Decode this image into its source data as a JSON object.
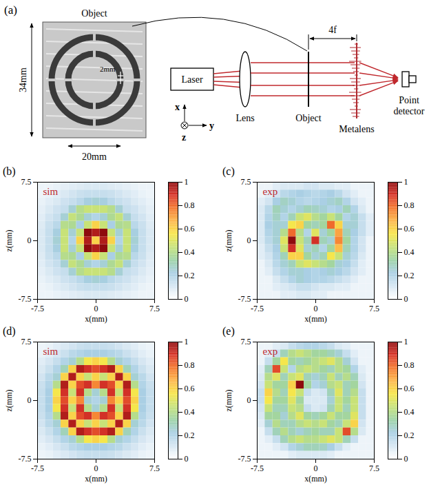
{
  "diagram": {
    "panel_label": "(a)",
    "object_photo": {
      "title": "Object",
      "height_label": "34mm",
      "width_label": "20mm",
      "gap_label": "2mm"
    },
    "components": [
      "Laser",
      "Lens",
      "Object",
      "Metalens",
      "Point detector"
    ],
    "distance_label": "4f",
    "axes": [
      "x",
      "z",
      "y"
    ]
  },
  "chart_data": [
    {
      "type": "heatmap",
      "panel_label": "(b)",
      "annotation": "sim",
      "xlabel": "x(mm)",
      "ylabel": "z(mm)",
      "xlim": [
        -7.5,
        7.5
      ],
      "ylim": [
        -7.5,
        7.5
      ],
      "xticks": [
        -7.5,
        0,
        7.5
      ],
      "yticks": [
        -7.5,
        0,
        7.5
      ],
      "x": [
        -7,
        -6,
        -5,
        -4,
        -3,
        -2,
        -1,
        0,
        1,
        2,
        3,
        4,
        5,
        6,
        7
      ],
      "z": [
        7,
        6,
        5,
        4,
        3,
        2,
        1,
        0,
        -1,
        -2,
        -3,
        -4,
        -5,
        -6,
        -7
      ],
      "cells": [
        [
          0.05,
          0.05,
          0.06,
          0.07,
          0.08,
          0.09,
          0.1,
          0.1,
          0.1,
          0.09,
          0.08,
          0.07,
          0.06,
          0.05,
          0.05
        ],
        [
          0.05,
          0.06,
          0.08,
          0.1,
          0.12,
          0.14,
          0.15,
          0.15,
          0.15,
          0.14,
          0.12,
          0.1,
          0.08,
          0.06,
          0.05
        ],
        [
          0.06,
          0.08,
          0.1,
          0.13,
          0.15,
          0.18,
          0.23,
          0.25,
          0.23,
          0.18,
          0.15,
          0.13,
          0.1,
          0.08,
          0.06
        ],
        [
          0.07,
          0.1,
          0.13,
          0.15,
          0.25,
          0.4,
          0.45,
          0.45,
          0.45,
          0.4,
          0.25,
          0.15,
          0.13,
          0.1,
          0.07
        ],
        [
          0.08,
          0.12,
          0.15,
          0.25,
          0.44,
          0.38,
          0.25,
          0.2,
          0.25,
          0.38,
          0.44,
          0.25,
          0.15,
          0.12,
          0.08
        ],
        [
          0.09,
          0.14,
          0.18,
          0.4,
          0.38,
          0.22,
          0.45,
          0.6,
          0.45,
          0.22,
          0.38,
          0.4,
          0.18,
          0.14,
          0.09
        ],
        [
          0.1,
          0.15,
          0.23,
          0.45,
          0.25,
          0.45,
          1.0,
          0.95,
          1.0,
          0.45,
          0.25,
          0.45,
          0.23,
          0.15,
          0.1
        ],
        [
          0.1,
          0.15,
          0.25,
          0.45,
          0.2,
          0.6,
          0.95,
          0.6,
          0.95,
          0.6,
          0.2,
          0.45,
          0.25,
          0.15,
          0.1
        ],
        [
          0.1,
          0.15,
          0.23,
          0.45,
          0.25,
          0.45,
          1.0,
          0.95,
          1.0,
          0.45,
          0.25,
          0.45,
          0.23,
          0.15,
          0.1
        ],
        [
          0.09,
          0.14,
          0.18,
          0.4,
          0.38,
          0.22,
          0.45,
          0.6,
          0.45,
          0.22,
          0.38,
          0.4,
          0.18,
          0.14,
          0.09
        ],
        [
          0.08,
          0.12,
          0.15,
          0.25,
          0.44,
          0.38,
          0.25,
          0.2,
          0.25,
          0.38,
          0.44,
          0.25,
          0.15,
          0.12,
          0.08
        ],
        [
          0.07,
          0.1,
          0.13,
          0.15,
          0.25,
          0.4,
          0.45,
          0.45,
          0.45,
          0.4,
          0.25,
          0.15,
          0.13,
          0.1,
          0.07
        ],
        [
          0.06,
          0.08,
          0.1,
          0.13,
          0.15,
          0.18,
          0.23,
          0.25,
          0.23,
          0.18,
          0.15,
          0.13,
          0.1,
          0.08,
          0.06
        ],
        [
          0.05,
          0.06,
          0.08,
          0.1,
          0.12,
          0.14,
          0.15,
          0.15,
          0.15,
          0.14,
          0.12,
          0.1,
          0.08,
          0.06,
          0.05
        ],
        [
          0.05,
          0.05,
          0.06,
          0.07,
          0.08,
          0.09,
          0.1,
          0.1,
          0.1,
          0.09,
          0.08,
          0.07,
          0.06,
          0.05,
          0.05
        ]
      ],
      "colorbar": {
        "range": [
          0,
          1
        ],
        "ticks": [
          0,
          0.2,
          0.4,
          0.6,
          0.8,
          1
        ]
      }
    },
    {
      "type": "heatmap",
      "panel_label": "(c)",
      "annotation": "exp",
      "xlabel": "x(mm)",
      "ylabel": "z(mm)",
      "xlim": [
        -7.5,
        7.5
      ],
      "ylim": [
        -7.5,
        7.5
      ],
      "xticks": [
        -7.5,
        0,
        7.5
      ],
      "yticks": [
        -7.5,
        0,
        7.5
      ],
      "x": [
        -7,
        -6,
        -5,
        -4,
        -3,
        -2,
        -1,
        0,
        1,
        2,
        3,
        4,
        5,
        6,
        7
      ],
      "z": [
        7,
        6,
        5,
        4,
        3,
        2,
        1,
        0,
        -1,
        -2,
        -3,
        -4,
        -5,
        -6,
        -7
      ],
      "cells": [
        [
          0.05,
          0.05,
          0.08,
          0.1,
          0.1,
          0.1,
          0.12,
          0.12,
          0.1,
          0.1,
          0.08,
          0.08,
          0.05,
          0.05,
          0.05
        ],
        [
          0.05,
          0.08,
          0.12,
          0.18,
          0.2,
          0.22,
          0.2,
          0.18,
          0.2,
          0.22,
          0.18,
          0.12,
          0.08,
          0.05,
          0.05
        ],
        [
          0.08,
          0.12,
          0.22,
          0.28,
          0.25,
          0.2,
          0.18,
          0.2,
          0.22,
          0.25,
          0.28,
          0.2,
          0.12,
          0.08,
          0.05
        ],
        [
          0.1,
          0.18,
          0.3,
          0.25,
          0.2,
          0.25,
          0.3,
          0.28,
          0.25,
          0.2,
          0.22,
          0.3,
          0.2,
          0.1,
          0.05
        ],
        [
          0.1,
          0.2,
          0.28,
          0.2,
          0.3,
          0.45,
          0.5,
          0.4,
          0.35,
          0.45,
          0.35,
          0.2,
          0.25,
          0.15,
          0.08
        ],
        [
          0.1,
          0.22,
          0.25,
          0.25,
          0.55,
          0.6,
          0.35,
          0.3,
          0.35,
          0.8,
          0.6,
          0.25,
          0.25,
          0.15,
          0.08
        ],
        [
          0.1,
          0.2,
          0.25,
          0.4,
          0.8,
          0.4,
          0.2,
          0.5,
          0.25,
          0.35,
          0.7,
          0.3,
          0.22,
          0.15,
          0.08
        ],
        [
          0.1,
          0.18,
          0.25,
          0.5,
          1.0,
          0.45,
          0.3,
          0.9,
          0.3,
          0.25,
          0.75,
          0.35,
          0.2,
          0.12,
          0.05
        ],
        [
          0.08,
          0.15,
          0.22,
          0.45,
          0.9,
          0.5,
          0.25,
          0.3,
          0.2,
          0.35,
          0.65,
          0.3,
          0.2,
          0.12,
          0.05
        ],
        [
          0.08,
          0.12,
          0.2,
          0.3,
          0.6,
          0.6,
          0.35,
          0.25,
          0.3,
          0.55,
          0.45,
          0.25,
          0.18,
          0.1,
          0.05
        ],
        [
          0.05,
          0.1,
          0.18,
          0.25,
          0.3,
          0.45,
          0.5,
          0.45,
          0.4,
          0.35,
          0.25,
          0.22,
          0.15,
          0.08,
          0.05
        ],
        [
          0.05,
          0.08,
          0.15,
          0.2,
          0.25,
          0.25,
          0.22,
          0.2,
          0.22,
          0.25,
          0.22,
          0.18,
          0.12,
          0.08,
          0.05
        ],
        [
          0.05,
          0.05,
          0.1,
          0.15,
          0.2,
          0.25,
          0.22,
          0.2,
          0.2,
          0.18,
          0.15,
          0.12,
          0.08,
          0.05,
          0.05
        ],
        [
          0.05,
          0.05,
          0.08,
          0.1,
          0.12,
          0.15,
          0.15,
          0.12,
          0.1,
          0.1,
          0.08,
          0.08,
          0.05,
          0.05,
          0.05
        ],
        [
          0.05,
          0.05,
          0.05,
          0.08,
          0.08,
          0.1,
          0.1,
          0.08,
          0.08,
          0.05,
          0.05,
          0.05,
          0.05,
          0.05,
          0.05
        ]
      ],
      "colorbar": {
        "range": [
          0,
          1
        ],
        "ticks": [
          0,
          0.2,
          0.4,
          0.6,
          0.8,
          1
        ]
      }
    },
    {
      "type": "heatmap",
      "panel_label": "(d)",
      "annotation": "sim",
      "xlabel": "x(mm)",
      "ylabel": "z(mm)",
      "xlim": [
        -7.5,
        7.5
      ],
      "ylim": [
        -7.5,
        7.5
      ],
      "xticks": [
        -7.5,
        0,
        7.5
      ],
      "yticks": [
        -7.5,
        0,
        7.5
      ],
      "x": [
        -7,
        -6,
        -5,
        -4,
        -3,
        -2,
        -1,
        0,
        1,
        2,
        3,
        4,
        5,
        6,
        7
      ],
      "z": [
        7,
        6,
        5,
        4,
        3,
        2,
        1,
        0,
        -1,
        -2,
        -3,
        -4,
        -5,
        -6,
        -7
      ],
      "cells": [
        [
          0.05,
          0.06,
          0.08,
          0.1,
          0.12,
          0.14,
          0.15,
          0.15,
          0.15,
          0.14,
          0.12,
          0.1,
          0.08,
          0.06,
          0.05
        ],
        [
          0.06,
          0.08,
          0.11,
          0.14,
          0.18,
          0.2,
          0.22,
          0.22,
          0.22,
          0.2,
          0.18,
          0.14,
          0.11,
          0.08,
          0.06
        ],
        [
          0.08,
          0.11,
          0.15,
          0.2,
          0.25,
          0.4,
          0.55,
          0.6,
          0.55,
          0.4,
          0.25,
          0.2,
          0.15,
          0.11,
          0.08
        ],
        [
          0.1,
          0.14,
          0.2,
          0.3,
          0.6,
          0.95,
          0.9,
          0.85,
          0.9,
          0.95,
          0.6,
          0.3,
          0.2,
          0.14,
          0.1
        ],
        [
          0.12,
          0.18,
          0.25,
          0.6,
          0.95,
          0.6,
          0.45,
          0.6,
          0.45,
          0.6,
          0.95,
          0.6,
          0.25,
          0.18,
          0.12
        ],
        [
          0.14,
          0.2,
          0.4,
          0.95,
          0.6,
          0.85,
          0.9,
          0.75,
          0.9,
          0.85,
          0.6,
          0.95,
          0.4,
          0.2,
          0.14
        ],
        [
          0.15,
          0.22,
          0.55,
          0.9,
          0.45,
          0.9,
          0.4,
          0.25,
          0.4,
          0.9,
          0.45,
          0.9,
          0.55,
          0.22,
          0.15
        ],
        [
          0.15,
          0.22,
          0.6,
          0.85,
          0.6,
          0.75,
          0.25,
          0.2,
          0.25,
          0.75,
          0.6,
          0.85,
          0.6,
          0.22,
          0.15
        ],
        [
          0.15,
          0.22,
          0.55,
          0.9,
          0.45,
          0.9,
          0.4,
          0.25,
          0.4,
          0.9,
          0.45,
          0.9,
          0.55,
          0.22,
          0.15
        ],
        [
          0.14,
          0.2,
          0.4,
          0.95,
          0.6,
          0.85,
          0.9,
          0.75,
          0.9,
          0.85,
          0.6,
          0.95,
          0.4,
          0.2,
          0.14
        ],
        [
          0.12,
          0.18,
          0.25,
          0.6,
          0.95,
          0.6,
          0.45,
          0.6,
          0.45,
          0.6,
          0.95,
          0.6,
          0.25,
          0.18,
          0.12
        ],
        [
          0.1,
          0.14,
          0.2,
          0.3,
          0.6,
          0.95,
          0.9,
          0.85,
          0.9,
          0.95,
          0.6,
          0.3,
          0.2,
          0.14,
          0.1
        ],
        [
          0.08,
          0.11,
          0.15,
          0.2,
          0.25,
          0.4,
          0.55,
          0.6,
          0.55,
          0.4,
          0.25,
          0.2,
          0.15,
          0.11,
          0.08
        ],
        [
          0.06,
          0.08,
          0.11,
          0.14,
          0.18,
          0.2,
          0.22,
          0.22,
          0.22,
          0.2,
          0.18,
          0.14,
          0.11,
          0.08,
          0.06
        ],
        [
          0.05,
          0.06,
          0.08,
          0.1,
          0.12,
          0.14,
          0.15,
          0.15,
          0.15,
          0.14,
          0.12,
          0.1,
          0.08,
          0.06,
          0.05
        ]
      ],
      "colorbar": {
        "range": [
          0,
          1
        ],
        "ticks": [
          0,
          0.2,
          0.4,
          0.6,
          0.8,
          1
        ]
      }
    },
    {
      "type": "heatmap",
      "panel_label": "(e)",
      "annotation": "exp",
      "xlabel": "x(mm)",
      "ylabel": "z(mm)",
      "xlim": [
        -7.5,
        7.5
      ],
      "ylim": [
        -7.5,
        7.5
      ],
      "xticks": [
        -7.5,
        0,
        7.5
      ],
      "yticks": [
        -7.5,
        0,
        7.5
      ],
      "x": [
        -7,
        -6,
        -5,
        -4,
        -3,
        -2,
        -1,
        0,
        1,
        2,
        3,
        4,
        5,
        6,
        7
      ],
      "z": [
        7,
        6,
        5,
        4,
        3,
        2,
        1,
        0,
        -1,
        -2,
        -3,
        -4,
        -5,
        -6,
        -7
      ],
      "cells": [
        [
          0.05,
          0.05,
          0.08,
          0.1,
          0.15,
          0.18,
          0.2,
          0.2,
          0.18,
          0.15,
          0.1,
          0.08,
          0.05,
          0.05,
          0.05
        ],
        [
          0.05,
          0.08,
          0.15,
          0.3,
          0.4,
          0.45,
          0.4,
          0.35,
          0.35,
          0.3,
          0.25,
          0.15,
          0.08,
          0.05,
          0.05
        ],
        [
          0.05,
          0.15,
          0.35,
          0.55,
          0.35,
          0.3,
          0.35,
          0.4,
          0.45,
          0.5,
          0.4,
          0.25,
          0.12,
          0.05,
          0.05
        ],
        [
          0.08,
          0.3,
          0.85,
          0.45,
          0.2,
          0.4,
          0.45,
          0.4,
          0.35,
          0.3,
          0.4,
          0.35,
          0.2,
          0.08,
          0.05
        ],
        [
          0.1,
          0.4,
          0.5,
          0.3,
          0.45,
          0.5,
          0.3,
          0.25,
          0.3,
          0.45,
          0.3,
          0.4,
          0.3,
          0.1,
          0.05
        ],
        [
          0.12,
          0.45,
          0.35,
          0.35,
          0.6,
          1.0,
          0.35,
          0.2,
          0.25,
          0.4,
          0.45,
          0.3,
          0.35,
          0.12,
          0.05
        ],
        [
          0.15,
          0.6,
          0.4,
          0.3,
          0.55,
          0.45,
          0.15,
          0.1,
          0.12,
          0.3,
          0.5,
          0.3,
          0.4,
          0.15,
          0.05
        ],
        [
          0.15,
          0.55,
          0.35,
          0.35,
          0.5,
          0.35,
          0.1,
          0.1,
          0.1,
          0.25,
          0.45,
          0.35,
          0.45,
          0.15,
          0.05
        ],
        [
          0.12,
          0.45,
          0.3,
          0.3,
          0.45,
          0.4,
          0.15,
          0.1,
          0.12,
          0.3,
          0.45,
          0.3,
          0.45,
          0.15,
          0.05
        ],
        [
          0.1,
          0.35,
          0.35,
          0.25,
          0.4,
          0.5,
          0.35,
          0.3,
          0.35,
          0.45,
          0.35,
          0.35,
          0.5,
          0.15,
          0.05
        ],
        [
          0.08,
          0.25,
          0.4,
          0.3,
          0.3,
          0.4,
          0.45,
          0.4,
          0.45,
          0.35,
          0.3,
          0.45,
          0.6,
          0.12,
          0.05
        ],
        [
          0.05,
          0.15,
          0.3,
          0.4,
          0.3,
          0.25,
          0.3,
          0.35,
          0.3,
          0.3,
          0.45,
          0.85,
          0.4,
          0.1,
          0.05
        ],
        [
          0.05,
          0.08,
          0.15,
          0.3,
          0.4,
          0.45,
          0.4,
          0.4,
          0.45,
          0.5,
          0.45,
          0.3,
          0.15,
          0.05,
          0.05
        ],
        [
          0.05,
          0.05,
          0.08,
          0.12,
          0.2,
          0.25,
          0.3,
          0.3,
          0.28,
          0.22,
          0.15,
          0.08,
          0.05,
          0.05,
          0.05
        ],
        [
          0.05,
          0.05,
          0.05,
          0.05,
          0.08,
          0.1,
          0.1,
          0.1,
          0.1,
          0.08,
          0.05,
          0.05,
          0.05,
          0.05,
          0.05
        ]
      ],
      "colorbar": {
        "range": [
          0,
          1
        ],
        "ticks": [
          0,
          0.2,
          0.4,
          0.6,
          0.8,
          1
        ]
      }
    }
  ]
}
